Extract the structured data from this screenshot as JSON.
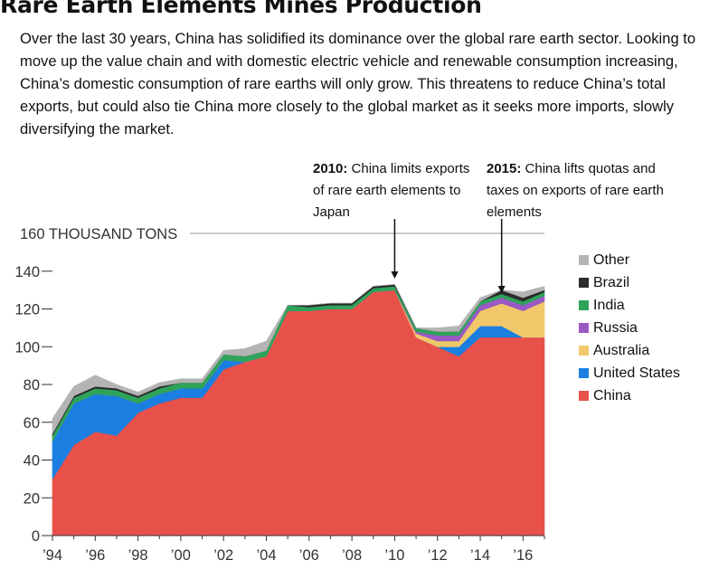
{
  "title": "Rare Earth Elements Mines Production",
  "intro": "Over the last 30 years, China has solidified its dominance over the global rare earth sector. Looking to move up the value chain and with domestic electric vehicle and renewable consumption increasing, China’s domestic consumption of rare earths will only grow. This threatens to reduce China’s total exports, but could also tie China more closely to the global market as it seeks more imports, slowly diversifying the market.",
  "annotations": [
    {
      "bold": "2010:",
      "text": " China limits exports of rare earth elements to Japan",
      "year": 2010
    },
    {
      "bold": "2015:",
      "text": " China lifts quotas and taxes on exports of rare earth elements",
      "year": 2015
    }
  ],
  "chart_data": {
    "type": "area",
    "stacked": true,
    "ylabel": "THOUSAND TONS",
    "ylim": [
      0,
      160
    ],
    "yticks": [
      0,
      20,
      40,
      60,
      80,
      100,
      120,
      140,
      160
    ],
    "top_tick_label": "160 THOUSAND TONS",
    "xlim": [
      1994,
      2017
    ],
    "xticks": [
      "’94",
      "’96",
      "’98",
      "’00",
      "’02",
      "’04",
      "’06",
      "’08",
      "’10",
      "’12",
      "’14",
      "’16"
    ],
    "xtick_years": [
      1994,
      1996,
      1998,
      2000,
      2002,
      2004,
      2006,
      2008,
      2010,
      2012,
      2014,
      2016
    ],
    "x": [
      1994,
      1995,
      1996,
      1997,
      1998,
      1999,
      2000,
      2001,
      2002,
      2003,
      2004,
      2005,
      2006,
      2007,
      2008,
      2009,
      2010,
      2011,
      2012,
      2013,
      2014,
      2015,
      2016,
      2017
    ],
    "legend_position": "right",
    "grid": false,
    "series": [
      {
        "name": "China",
        "color": "#e8504a",
        "values": [
          30,
          48,
          55,
          53,
          65,
          70,
          73,
          73,
          88,
          92,
          95,
          119,
          119,
          120,
          120,
          129,
          130,
          105,
          100,
          95,
          105,
          105,
          105,
          105
        ]
      },
      {
        "name": "United States",
        "color": "#1a7fe0",
        "values": [
          20,
          22,
          20,
          21,
          5,
          5,
          5,
          5,
          5,
          0,
          0,
          0,
          0,
          0,
          0,
          0,
          0,
          0,
          0,
          5,
          6,
          6,
          0,
          0
        ]
      },
      {
        "name": "Australia",
        "color": "#f1c869",
        "values": [
          0,
          0,
          0,
          0,
          0,
          0,
          0,
          0,
          0,
          0,
          0,
          0,
          0,
          0,
          0,
          0,
          0,
          2,
          3,
          3,
          8,
          12,
          14,
          19
        ]
      },
      {
        "name": "Russia",
        "color": "#9b59c6",
        "values": [
          0,
          0,
          0,
          0,
          0,
          0,
          0,
          0,
          0,
          0,
          0,
          0,
          0,
          0,
          0,
          0,
          0,
          1,
          3,
          3,
          3,
          3,
          3,
          3
        ]
      },
      {
        "name": "India",
        "color": "#2ea35a",
        "values": [
          3,
          3,
          3,
          3,
          3,
          3,
          3,
          3,
          3,
          3,
          3,
          3,
          2,
          2,
          2,
          2,
          2,
          2,
          2,
          2,
          2,
          2,
          2,
          2
        ]
      },
      {
        "name": "Brazil",
        "color": "#2b2b2b",
        "values": [
          1,
          1,
          1,
          1,
          1,
          1,
          0,
          0,
          0,
          0,
          0,
          0,
          1,
          1,
          1,
          1,
          1,
          0,
          0,
          0,
          0,
          2,
          2,
          1
        ]
      },
      {
        "name": "Other",
        "color": "#b4b4b4",
        "values": [
          8,
          5,
          6,
          2,
          2,
          2,
          2,
          2,
          2,
          4,
          5,
          0,
          0,
          0,
          0,
          0,
          0,
          0,
          2,
          3,
          2,
          0,
          3,
          2
        ]
      }
    ]
  }
}
